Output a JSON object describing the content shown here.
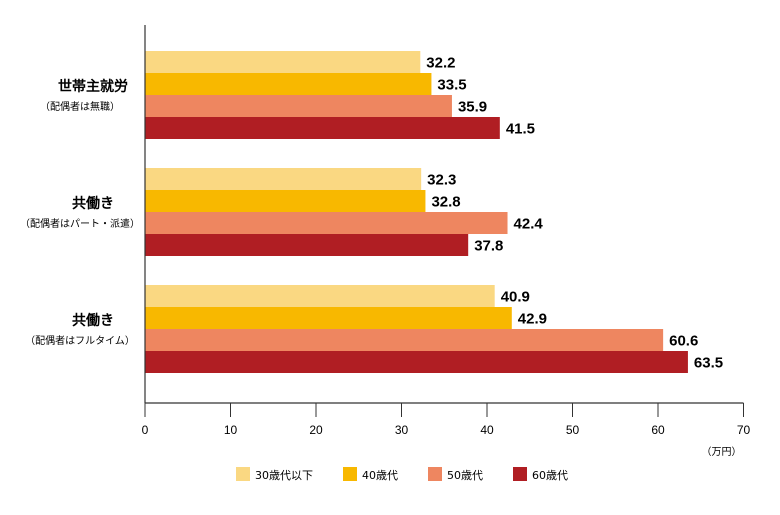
{
  "chart_data": {
    "type": "bar",
    "orientation": "horizontal",
    "categories": [
      {
        "main": "世帯主就労",
        "sub": "（配偶者は無職）"
      },
      {
        "main": "共働き",
        "sub": "（配偶者はパート・派遣）"
      },
      {
        "main": "共働き",
        "sub": "（配偶者はフルタイム）"
      }
    ],
    "series": [
      {
        "name": "30歳代以下",
        "values": [
          32.2,
          32.3,
          40.9
        ],
        "color": "#fad882"
      },
      {
        "name": "40歳代",
        "values": [
          33.5,
          32.8,
          42.9
        ],
        "color": "#f8b800"
      },
      {
        "name": "50歳代",
        "values": [
          35.9,
          42.4,
          60.6
        ],
        "color": "#ee8660"
      },
      {
        "name": "60歳代",
        "values": [
          41.5,
          37.8,
          63.5
        ],
        "color": "#b01e23"
      }
    ],
    "xlim": [
      0,
      70
    ],
    "xticks": [
      0,
      10,
      20,
      30,
      40,
      50,
      60,
      70
    ],
    "xunit": "（万円）",
    "legend_position": "bottom",
    "grid": false
  }
}
